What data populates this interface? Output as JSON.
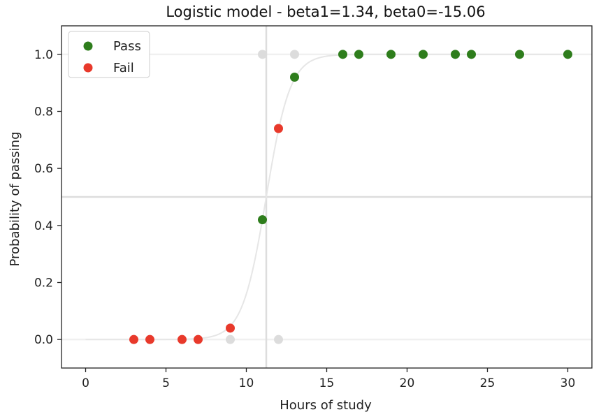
{
  "chart_data": {
    "type": "scatter",
    "title": "Logistic model - beta1=1.34, beta0=-15.06",
    "xlabel": "Hours of study",
    "ylabel": "Probability of passing",
    "xlim": [
      -1.5,
      31.5
    ],
    "ylim": [
      -0.1,
      1.1
    ],
    "xticks": [
      0,
      5,
      10,
      15,
      20,
      25,
      30
    ],
    "yticks": [
      0.0,
      0.2,
      0.4,
      0.6,
      0.8,
      1.0
    ],
    "xtick_labels": [
      "0",
      "5",
      "10",
      "15",
      "20",
      "25",
      "30"
    ],
    "ytick_labels": [
      "0.0",
      "0.2",
      "0.4",
      "0.6",
      "0.8",
      "1.0"
    ],
    "grid": false,
    "legend_position": "top-left",
    "model": {
      "beta1": 1.34,
      "beta0": -15.06
    },
    "curve": {
      "x_range": [
        0,
        30
      ],
      "color": "#e6e6e6"
    },
    "threshold_lines": {
      "y": 0.5,
      "x": 11.24,
      "color": "#dddddd"
    },
    "reference_lines_y": [
      0.0,
      1.0
    ],
    "series": [
      {
        "name": "Pass",
        "color": "#2e7d1c",
        "x": [
          11,
          13,
          16,
          17,
          19,
          21,
          23,
          24,
          27,
          30
        ],
        "y": [
          0.42,
          0.92,
          1.0,
          1.0,
          1.0,
          1.0,
          1.0,
          1.0,
          1.0,
          1.0
        ]
      },
      {
        "name": "Fail",
        "color": "#e8392b",
        "x": [
          3,
          4,
          6,
          7,
          9,
          12
        ],
        "y": [
          0.0,
          0.0,
          0.0,
          0.0,
          0.04,
          0.74
        ]
      },
      {
        "color": "#dcdcdc",
        "x": [
          9,
          12,
          11,
          13
        ],
        "y": [
          0.0,
          0.0,
          1.0,
          1.0
        ]
      }
    ]
  }
}
